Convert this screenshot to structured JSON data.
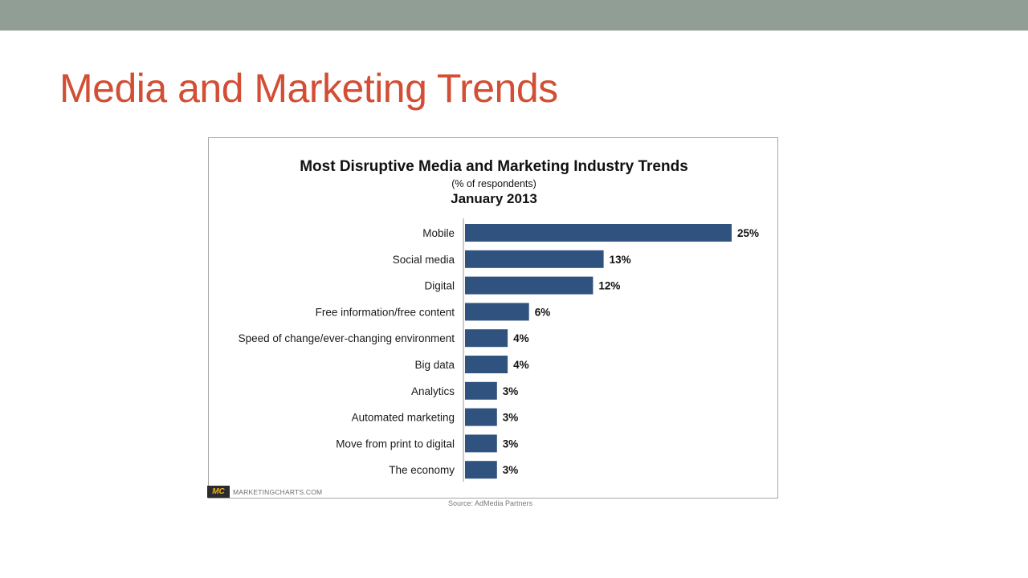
{
  "slide": {
    "title": "Media and Marketing Trends"
  },
  "brand": {
    "mark": "MC",
    "name": "MARKETINGCHARTS.COM"
  },
  "source": "Source: AdMedia Partners",
  "colors": {
    "top_bar": "#919e95",
    "title": "#d24e34",
    "bar": "#30527f"
  },
  "chart_data": {
    "type": "bar",
    "orientation": "horizontal",
    "title": "Most Disruptive Media and Marketing Industry Trends",
    "subtitle": "(% of respondents)",
    "date": "January 2013",
    "categories": [
      "Mobile",
      "Social media",
      "Digital",
      "Free information/free content",
      "Speed of change/ever-changing environment",
      "Big data",
      "Analytics",
      "Automated marketing",
      "Move from print to digital",
      "The economy"
    ],
    "values": [
      25,
      13,
      12,
      6,
      4,
      4,
      3,
      3,
      3,
      3
    ],
    "value_labels": [
      "25%",
      "13%",
      "12%",
      "6%",
      "4%",
      "4%",
      "3%",
      "3%",
      "3%",
      "3%"
    ],
    "unit": "%",
    "xlim": [
      0,
      25
    ],
    "grid": false,
    "legend": "none"
  }
}
